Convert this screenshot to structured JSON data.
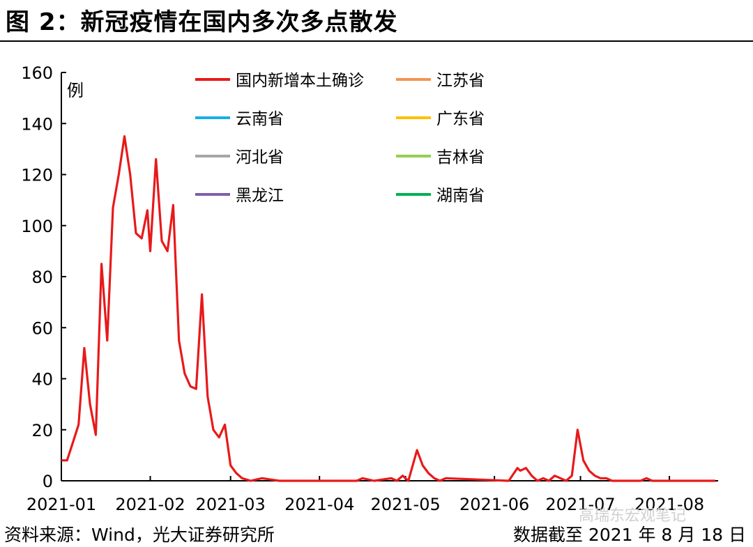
{
  "header": {
    "title": "图 2：新冠疫情在国内多次多点散发"
  },
  "footer": {
    "source": "资料来源：Wind，光大证券研究所",
    "date_note": "数据截至 2021 年 8 月 18 日",
    "watermark": "高瑞东宏观笔记"
  },
  "chart_data": {
    "type": "line",
    "title": "",
    "xlabel": "",
    "ylabel": "例",
    "ylim": [
      0,
      160
    ],
    "yticks": [
      "0",
      "20",
      "40",
      "60",
      "80",
      "100",
      "120",
      "140",
      "160"
    ],
    "xticks": [
      "2021-01",
      "2021-02",
      "2021-03",
      "2021-04",
      "2021-05",
      "2021-06",
      "2021-07",
      "2021-08"
    ],
    "xrange": [
      "2021-01-01",
      "2021-08-18"
    ],
    "grid": false,
    "legend_position": "top",
    "series": [
      {
        "name": "国内新增本土确诊",
        "color": "#e8191a",
        "points": [
          [
            "2021-01-01",
            8
          ],
          [
            "2021-01-03",
            8
          ],
          [
            "2021-01-05",
            15
          ],
          [
            "2021-01-07",
            22
          ],
          [
            "2021-01-09",
            52
          ],
          [
            "2021-01-11",
            30
          ],
          [
            "2021-01-13",
            18
          ],
          [
            "2021-01-15",
            85
          ],
          [
            "2021-01-17",
            55
          ],
          [
            "2021-01-19",
            107
          ],
          [
            "2021-01-21",
            120
          ],
          [
            "2021-01-23",
            135
          ],
          [
            "2021-01-25",
            120
          ],
          [
            "2021-01-27",
            97
          ],
          [
            "2021-01-29",
            95
          ],
          [
            "2021-01-31",
            106
          ],
          [
            "2021-02-01",
            90
          ],
          [
            "2021-02-03",
            126
          ],
          [
            "2021-02-05",
            94
          ],
          [
            "2021-02-07",
            90
          ],
          [
            "2021-02-09",
            108
          ],
          [
            "2021-02-11",
            55
          ],
          [
            "2021-02-13",
            42
          ],
          [
            "2021-02-15",
            37
          ],
          [
            "2021-02-17",
            36
          ],
          [
            "2021-02-19",
            73
          ],
          [
            "2021-02-21",
            33
          ],
          [
            "2021-02-23",
            20
          ],
          [
            "2021-02-25",
            17
          ],
          [
            "2021-02-27",
            22
          ],
          [
            "2021-03-01",
            6
          ],
          [
            "2021-03-03",
            3
          ],
          [
            "2021-03-05",
            1
          ],
          [
            "2021-03-08",
            0
          ],
          [
            "2021-03-12",
            1
          ],
          [
            "2021-03-18",
            0
          ],
          [
            "2021-04-14",
            0
          ],
          [
            "2021-04-16",
            1
          ],
          [
            "2021-04-20",
            0
          ],
          [
            "2021-04-26",
            1
          ],
          [
            "2021-04-28",
            0
          ],
          [
            "2021-04-30",
            2
          ],
          [
            "2021-05-02",
            0
          ],
          [
            "2021-05-05",
            12
          ],
          [
            "2021-05-07",
            6
          ],
          [
            "2021-05-09",
            3
          ],
          [
            "2021-05-11",
            1
          ],
          [
            "2021-05-13",
            0
          ],
          [
            "2021-05-15",
            1
          ],
          [
            "2021-06-06",
            0
          ],
          [
            "2021-06-09",
            5
          ],
          [
            "2021-06-10",
            4
          ],
          [
            "2021-06-12",
            5
          ],
          [
            "2021-06-14",
            2
          ],
          [
            "2021-06-16",
            0
          ],
          [
            "2021-06-18",
            1
          ],
          [
            "2021-06-20",
            0
          ],
          [
            "2021-06-22",
            2
          ],
          [
            "2021-06-24",
            1
          ],
          [
            "2021-06-26",
            0
          ],
          [
            "2021-06-28",
            2
          ],
          [
            "2021-06-30",
            20
          ],
          [
            "2021-07-02",
            8
          ],
          [
            "2021-07-04",
            4
          ],
          [
            "2021-07-06",
            2
          ],
          [
            "2021-07-08",
            1
          ],
          [
            "2021-07-10",
            1
          ],
          [
            "2021-07-12",
            0
          ],
          [
            "2021-07-20",
            0
          ],
          [
            "2021-07-22",
            0
          ],
          [
            "2021-07-24",
            1
          ],
          [
            "2021-07-26",
            0
          ],
          [
            "2021-07-28",
            0
          ],
          [
            "2021-07-30",
            0
          ],
          [
            "2021-08-01",
            0
          ],
          [
            "2021-08-03",
            0
          ],
          [
            "2021-08-05",
            0
          ],
          [
            "2021-08-07",
            0
          ],
          [
            "2021-08-09",
            0
          ],
          [
            "2021-08-11",
            0
          ],
          [
            "2021-08-13",
            0
          ],
          [
            "2021-08-15",
            0
          ],
          [
            "2021-08-17",
            0
          ]
        ]
      },
      {
        "name": "江苏省",
        "color": "#f4944f",
        "points": []
      },
      {
        "name": "云南省",
        "color": "#1aaee7",
        "points": []
      },
      {
        "name": "广东省",
        "color": "#ffc000",
        "points": []
      },
      {
        "name": "河北省",
        "color": "#a6a6a6",
        "points": []
      },
      {
        "name": "吉林省",
        "color": "#92d050",
        "points": []
      },
      {
        "name": "黑龙江",
        "color": "#7f5fa8",
        "points": []
      },
      {
        "name": "湖南省",
        "color": "#00b050",
        "points": []
      }
    ]
  }
}
